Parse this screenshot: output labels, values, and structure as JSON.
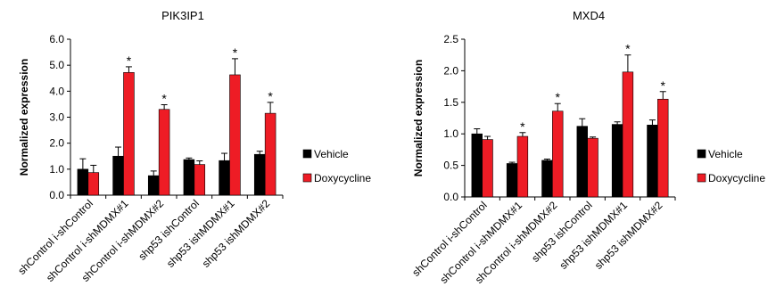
{
  "chart_data": [
    {
      "type": "bar",
      "title": "PIK3IP1",
      "ylabel": "Normalized expression",
      "ylim": [
        0,
        6
      ],
      "yticks": [
        "0.0",
        "1.0",
        "2.0",
        "3.0",
        "4.0",
        "5.0",
        "6.0"
      ],
      "categories": [
        "shControl i-shControl",
        "shControl i-shMDMX#1",
        "shControl i-shMDMX#2",
        "shp53 ishControl",
        "shp53 ishMDMX#1",
        "shp53 ishMDMX#2"
      ],
      "series": [
        {
          "name": "Vehicle",
          "color": "#000000",
          "values": [
            1.0,
            1.5,
            0.75,
            1.37,
            1.33,
            1.57
          ],
          "errors": [
            0.4,
            0.35,
            0.18,
            0.06,
            0.28,
            0.12
          ],
          "significant": [
            false,
            false,
            false,
            false,
            false,
            false
          ]
        },
        {
          "name": "Doxycycline",
          "color": "#ee1c25",
          "values": [
            0.87,
            4.72,
            3.3,
            1.18,
            4.63,
            3.15
          ],
          "errors": [
            0.28,
            0.22,
            0.18,
            0.14,
            0.62,
            0.42
          ],
          "significant": [
            false,
            true,
            true,
            false,
            true,
            true
          ]
        }
      ],
      "significance_label": "*",
      "legend_position": "right"
    },
    {
      "type": "bar",
      "title": "MXD4",
      "ylabel": "Normalized expression",
      "ylim": [
        0,
        2.5
      ],
      "yticks": [
        "0.0",
        "0.5",
        "1.0",
        "1.5",
        "2.0",
        "2.5"
      ],
      "categories": [
        "shControl i-shControl",
        "shControl i-shMDMX#1",
        "shControl i-shMDMX#2",
        "shp53 ishControl",
        "shp53 ishMDMX#1",
        "shp53 ishMDMX#2"
      ],
      "series": [
        {
          "name": "Vehicle",
          "color": "#000000",
          "values": [
            1.0,
            0.53,
            0.58,
            1.12,
            1.15,
            1.14
          ],
          "errors": [
            0.08,
            0.02,
            0.02,
            0.12,
            0.04,
            0.08
          ],
          "significant": [
            false,
            false,
            false,
            false,
            false,
            false
          ]
        },
        {
          "name": "Doxycycline",
          "color": "#ee1c25",
          "values": [
            0.91,
            0.96,
            1.36,
            0.93,
            1.98,
            1.55
          ],
          "errors": [
            0.05,
            0.06,
            0.12,
            0.02,
            0.27,
            0.12
          ],
          "significant": [
            false,
            true,
            true,
            false,
            true,
            true
          ]
        }
      ],
      "significance_label": "*",
      "legend_position": "right"
    }
  ]
}
